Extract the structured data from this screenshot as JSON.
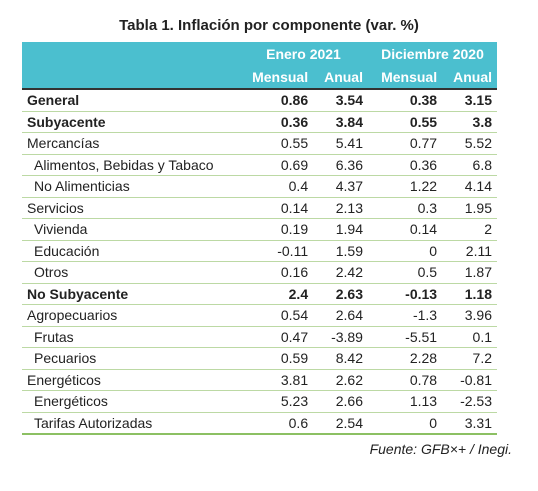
{
  "title": "Tabla 1. Inflación por componente (var. %)",
  "table": {
    "groups": [
      "Enero 2021",
      "Diciembre 2020"
    ],
    "subheaders": [
      "Mensual",
      "Anual",
      "Mensual",
      "Anual"
    ],
    "rows": [
      {
        "label": "General",
        "values": [
          0.86,
          3.54,
          0.38,
          3.15
        ]
      },
      {
        "label": "Subyacente",
        "values": [
          0.36,
          3.84,
          0.55,
          3.8
        ]
      },
      {
        "label": "Mercancías",
        "values": [
          0.55,
          5.41,
          0.77,
          5.52
        ]
      },
      {
        "label": "Alimentos, Bebidas y Tabaco",
        "values": [
          0.69,
          6.36,
          0.36,
          6.8
        ]
      },
      {
        "label": "No Alimenticias",
        "values": [
          0.4,
          4.37,
          1.22,
          4.14
        ]
      },
      {
        "label": "Servicios",
        "values": [
          0.14,
          2.13,
          0.3,
          1.95
        ]
      },
      {
        "label": "Vivienda",
        "values": [
          0.19,
          1.94,
          0.14,
          2
        ]
      },
      {
        "label": "Educación",
        "values": [
          -0.11,
          1.59,
          0,
          2.11
        ]
      },
      {
        "label": "Otros",
        "values": [
          0.16,
          2.42,
          0.5,
          1.87
        ]
      },
      {
        "label": "No Subyacente",
        "values": [
          2.4,
          2.63,
          -0.13,
          1.18
        ]
      },
      {
        "label": "Agropecuarios",
        "values": [
          0.54,
          2.64,
          -1.3,
          3.96
        ]
      },
      {
        "label": "Frutas",
        "values": [
          0.47,
          -3.89,
          -5.51,
          0.1
        ]
      },
      {
        "label": "Pecuarios",
        "values": [
          0.59,
          8.42,
          2.28,
          7.2
        ]
      },
      {
        "label": "Energéticos",
        "values": [
          3.81,
          2.62,
          0.78,
          -0.81
        ]
      },
      {
        "label": "Energéticos",
        "values": [
          5.23,
          2.66,
          1.13,
          -2.53
        ]
      },
      {
        "label": "Tarifas Autorizadas",
        "values": [
          0.6,
          2.54,
          0,
          3.31
        ]
      }
    ]
  },
  "source": "Fuente: GFB×+ /  Inegi."
}
